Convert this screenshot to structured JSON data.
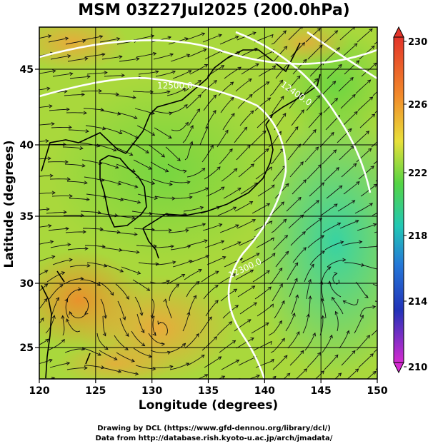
{
  "title": "MSM 03Z27Jul2025 (200.0hPa)",
  "xlabel": "Longitude (degrees)",
  "ylabel": "Latitude  (degrees)",
  "x_ticks": [
    "120",
    "125",
    "130",
    "135",
    "140",
    "145",
    "150"
  ],
  "y_ticks": [
    "25",
    "30",
    "35",
    "40",
    "45"
  ],
  "colorbar_ticks": [
    "230",
    "226",
    "222",
    "218",
    "214",
    "210"
  ],
  "contour_labels": [
    "12500.0",
    "12400.0",
    "12300.0"
  ],
  "credit_line1": "Drawing by DCL (https://www.gfd-dennou.org/library/dcl/)",
  "credit_line2": "Data from http://database.rish.kyoto-u.ac.jp/arch/jmadata/",
  "colors": {
    "warm": "#f2a83a",
    "mid": "#b9dc3c",
    "cool": "#2ed2a0",
    "contour": "#ffffff",
    "coast": "#000000"
  }
}
